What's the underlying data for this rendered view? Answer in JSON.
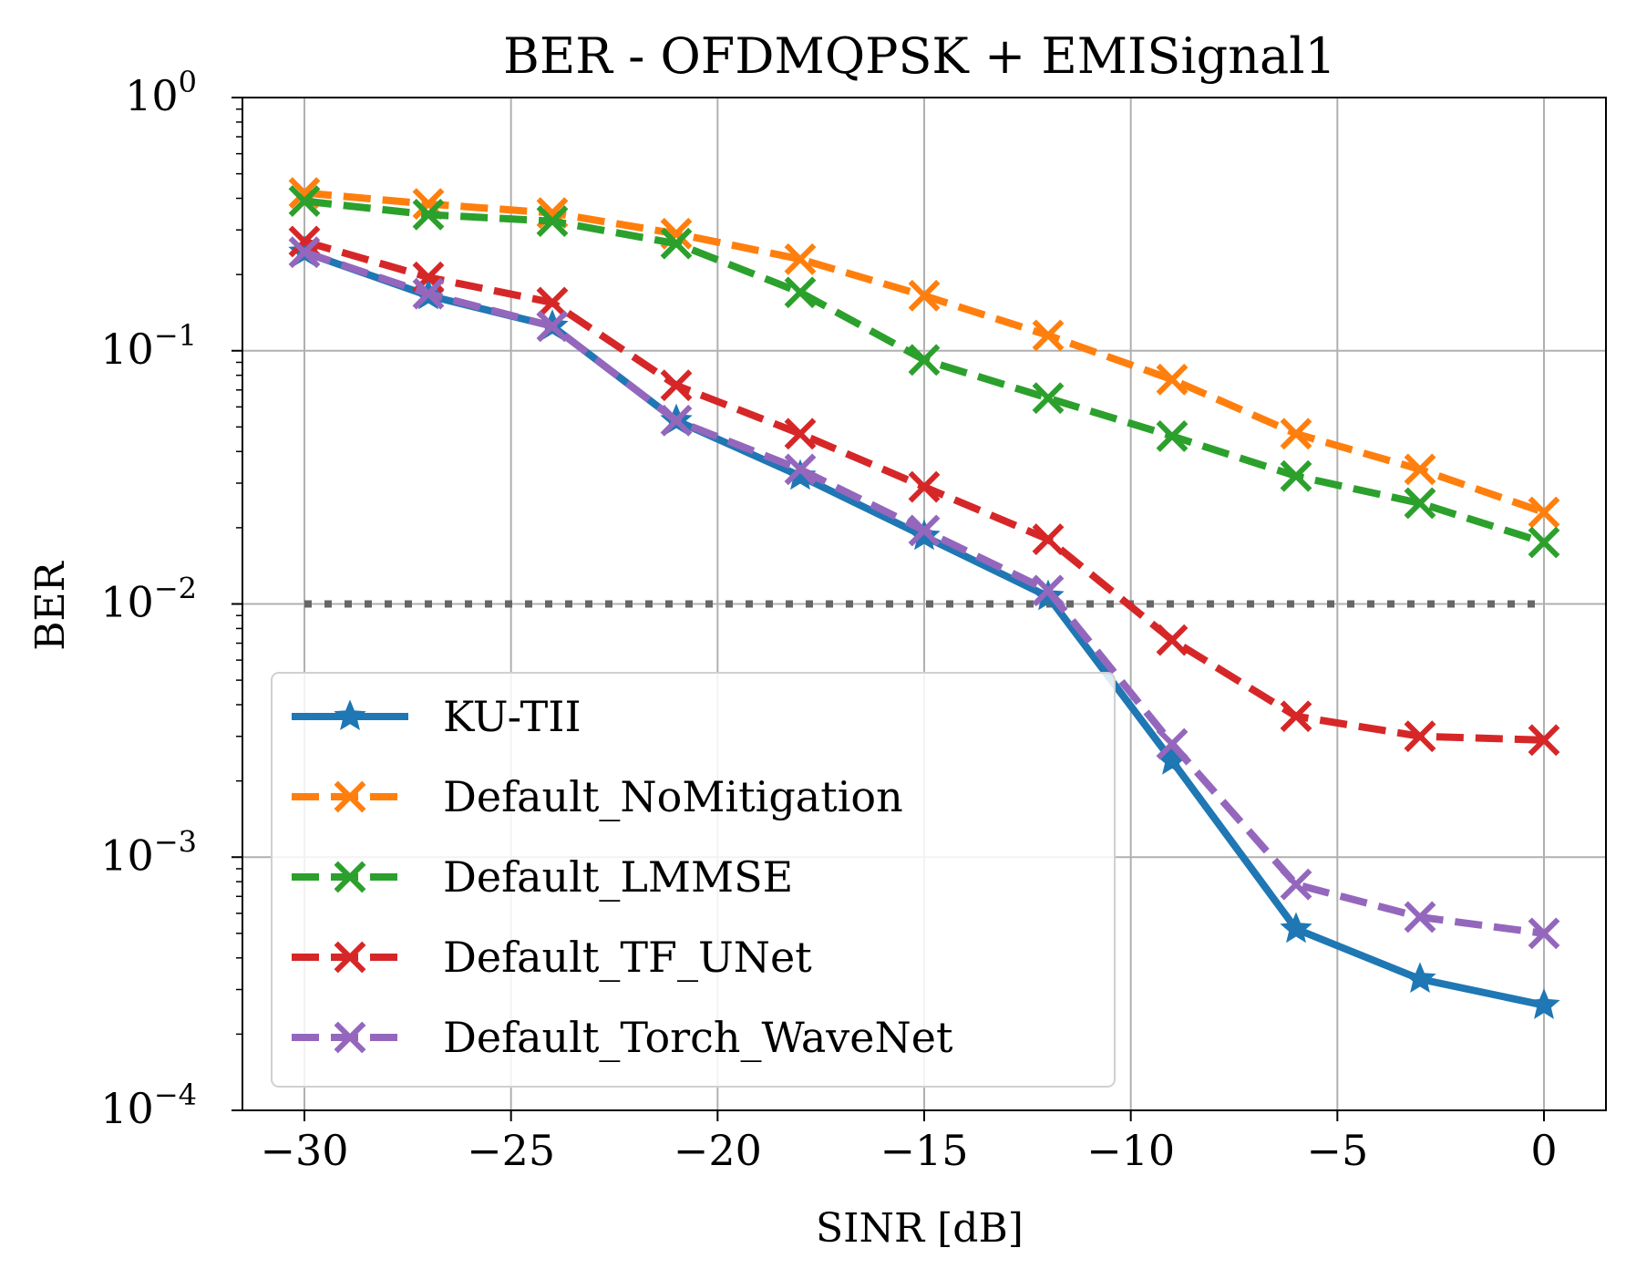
{
  "chart_data": {
    "type": "line",
    "title": "BER - OFDMQPSK + EMISignal1",
    "xlabel": "SINR [dB]",
    "ylabel": "BER",
    "yscale": "log",
    "xlim": [
      -31.5,
      1.5
    ],
    "ylim": [
      0.0001,
      1
    ],
    "xticks": [
      -30,
      -25,
      -20,
      -15,
      -10,
      -5,
      0
    ],
    "xtick_labels": [
      "−30",
      "−25",
      "−20",
      "−15",
      "−10",
      "−5",
      "0"
    ],
    "yticks": [
      {
        "value": 1,
        "base": "10",
        "exp": "0"
      },
      {
        "value": 0.1,
        "base": "10",
        "exp": "−1"
      },
      {
        "value": 0.01,
        "base": "10",
        "exp": "−2"
      },
      {
        "value": 0.001,
        "base": "10",
        "exp": "−3"
      },
      {
        "value": 0.0001,
        "base": "10",
        "exp": "−4"
      }
    ],
    "grid": true,
    "legend_position": "lower-left",
    "x": [
      -30,
      -27,
      -24,
      -21,
      -18,
      -15,
      -12,
      -9,
      -6,
      -3,
      0
    ],
    "series": [
      {
        "name": "KU-TII",
        "color": "#1f77b4",
        "marker": "star",
        "linestyle": "solid",
        "values": [
          0.245,
          0.165,
          0.125,
          0.053,
          0.032,
          0.0185,
          0.0107,
          0.0024,
          0.00052,
          0.00033,
          0.00026
        ]
      },
      {
        "name": "Default_NoMitigation",
        "color": "#ff7f0e",
        "marker": "x",
        "linestyle": "dashed",
        "values": [
          0.42,
          0.38,
          0.35,
          0.29,
          0.23,
          0.165,
          0.115,
          0.077,
          0.047,
          0.034,
          0.023
        ]
      },
      {
        "name": "Default_LMMSE",
        "color": "#2ca02c",
        "marker": "x",
        "linestyle": "dashed",
        "values": [
          0.39,
          0.345,
          0.325,
          0.265,
          0.17,
          0.092,
          0.065,
          0.046,
          0.032,
          0.025,
          0.0175
        ]
      },
      {
        "name": "Default_TF_UNet",
        "color": "#d62728",
        "marker": "x",
        "linestyle": "dashed",
        "values": [
          0.27,
          0.195,
          0.155,
          0.073,
          0.047,
          0.029,
          0.018,
          0.0072,
          0.0036,
          0.003,
          0.0029
        ]
      },
      {
        "name": "Default_Torch_WaveNet",
        "color": "#9467bd",
        "marker": "x",
        "linestyle": "dashed",
        "values": [
          0.245,
          0.168,
          0.125,
          0.053,
          0.034,
          0.0195,
          0.0113,
          0.0028,
          0.00078,
          0.00058,
          0.0005
        ]
      }
    ],
    "reference_line": {
      "y": 0.01,
      "x_range": [
        -30,
        0
      ],
      "color": "#666666",
      "linestyle": "dotted"
    }
  }
}
